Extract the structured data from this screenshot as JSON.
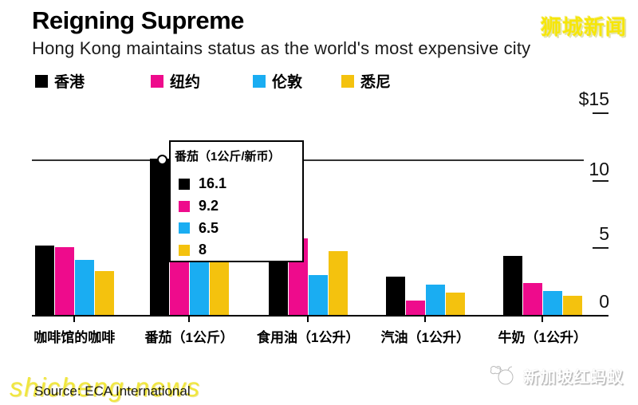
{
  "header": {
    "title": "Reigning Supreme",
    "subtitle": "Hong Kong maintains status as the world's most expensive city",
    "site_logo": "狮城新闻"
  },
  "legend": {
    "items": [
      {
        "label": "香港",
        "color": "#000000"
      },
      {
        "label": "纽约",
        "color": "#ee0b8c"
      },
      {
        "label": "伦敦",
        "color": "#1aadf2"
      },
      {
        "label": "悉尼",
        "color": "#f4c20e"
      }
    ]
  },
  "axis": {
    "ticks": [
      {
        "label": "$15",
        "value": 15,
        "dash": true
      },
      {
        "label": "10",
        "value": 10,
        "dash": true
      },
      {
        "label": "5",
        "value": 5,
        "dash": true
      },
      {
        "label": "0",
        "value": 0,
        "dash": false
      }
    ]
  },
  "tooltip": {
    "title": "番茄（1公斤/新币）",
    "rows": [
      {
        "color": "#000000",
        "value": "16.1"
      },
      {
        "color": "#ee0b8c",
        "value": "9.2"
      },
      {
        "color": "#1aadf2",
        "value": "6.5"
      },
      {
        "color": "#f4c20e",
        "value": "8"
      }
    ]
  },
  "chart_data": {
    "type": "bar",
    "title": "Reigning Supreme",
    "subtitle": "Hong Kong maintains status as the world's most expensive city",
    "categories": [
      "咖啡馆的咖啡",
      "番茄（1公斤）",
      "食用油（1公升）",
      "汽油（1公升）",
      "牛奶（1公升）"
    ],
    "series": [
      {
        "name": "香港",
        "color": "#000000",
        "values": [
          5.2,
          11.6,
          4.5,
          2.9,
          4.4
        ]
      },
      {
        "name": "纽约",
        "color": "#ee0b8c",
        "values": [
          5.1,
          6.6,
          5.7,
          1.1,
          2.4
        ]
      },
      {
        "name": "伦敦",
        "color": "#1aadf2",
        "values": [
          4.1,
          4.7,
          3.0,
          2.3,
          1.8
        ]
      },
      {
        "name": "悉尼",
        "color": "#f4c20e",
        "values": [
          3.3,
          5.8,
          4.8,
          1.7,
          1.5
        ]
      }
    ],
    "ylabel": "$",
    "ylim": [
      0,
      15
    ],
    "yticks": [
      0,
      5,
      10,
      15
    ],
    "legend_position": "top",
    "grid": false,
    "hover": {
      "category": "番茄（1公斤）",
      "tooltip_title": "番茄（1公斤/新币）",
      "tooltip_values_sgd": [
        16.1,
        9.2,
        6.5,
        8
      ],
      "marker_on_series": "香港"
    }
  },
  "footer": {
    "source": "Source: ECA International",
    "watermark_left": "shicheng-news",
    "watermark_right": "新加坡红蚂蚁"
  }
}
